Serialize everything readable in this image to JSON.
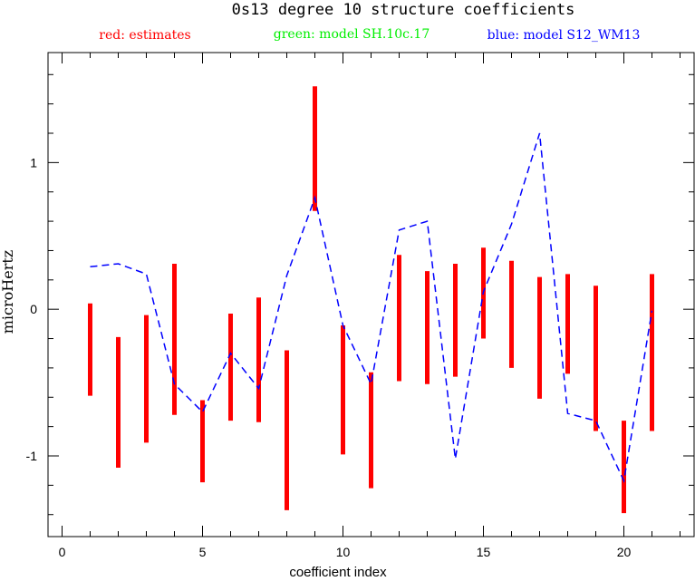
{
  "chart_data": {
    "type": "errorbar",
    "title": "0s13 degree 10 structure coefficients",
    "xlabel": "coefficient index",
    "ylabel": "microHertz",
    "xlim": [
      -0.5,
      22.5
    ],
    "ylim": [
      -1.55,
      1.75
    ],
    "xticks_major": [
      0,
      5,
      10,
      15,
      20
    ],
    "xtick_labels": [
      "0",
      "5",
      "10",
      "15",
      "20"
    ],
    "yticks_major": [
      -1,
      0,
      1
    ],
    "ytick_labels": [
      "-1",
      "0",
      "1"
    ],
    "legend": [
      {
        "text": "red: estimates",
        "color": "#ff0000"
      },
      {
        "text": "green: model SH.10c.17",
        "color": "#00ee00"
      },
      {
        "text": "blue: model S12_WM13",
        "color": "#0000ff"
      }
    ],
    "series": [
      {
        "name": "estimates",
        "kind": "range-bars",
        "color": "#ff0000",
        "x": [
          1,
          2,
          3,
          4,
          5,
          6,
          7,
          8,
          9,
          10,
          11,
          12,
          13,
          14,
          15,
          16,
          17,
          18,
          19,
          20,
          21
        ],
        "low": [
          -0.59,
          -1.08,
          -0.91,
          -0.72,
          -1.18,
          -0.76,
          -0.77,
          -1.37,
          0.67,
          -0.99,
          -1.22,
          -0.49,
          -0.51,
          -0.46,
          -0.2,
          -0.4,
          -0.61,
          -0.44,
          -0.83,
          -1.39,
          -0.83
        ],
        "high": [
          0.04,
          -0.19,
          -0.04,
          0.31,
          -0.62,
          -0.03,
          0.08,
          -0.28,
          1.52,
          -0.11,
          -0.43,
          0.37,
          0.26,
          0.31,
          0.42,
          0.33,
          0.22,
          0.24,
          0.16,
          -0.76,
          0.24
        ]
      },
      {
        "name": "model S12_WM13",
        "kind": "dashed-line",
        "color": "#0000ff",
        "x": [
          1,
          2,
          3,
          4,
          5,
          6,
          7,
          8,
          9,
          10,
          11,
          12,
          13,
          14,
          15,
          16,
          17,
          18,
          19,
          20,
          21
        ],
        "y": [
          0.29,
          0.31,
          0.24,
          -0.51,
          -0.7,
          -0.3,
          -0.54,
          0.23,
          0.76,
          -0.11,
          -0.51,
          0.54,
          0.6,
          -1.02,
          0.12,
          0.58,
          1.2,
          -0.71,
          -0.76,
          -1.17,
          -0.01
        ]
      }
    ]
  }
}
